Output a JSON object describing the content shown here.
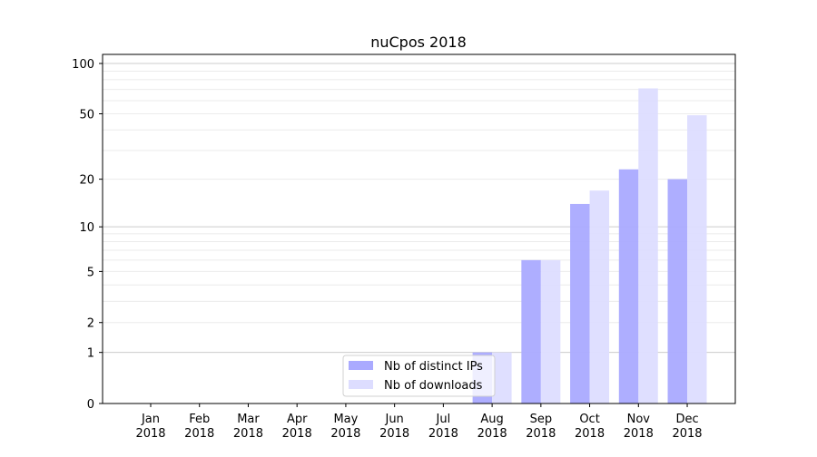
{
  "chart_data": {
    "type": "bar",
    "title": "nuCpos 2018",
    "xlabel": "",
    "ylabel": "",
    "yscale": "log(1+y)",
    "ylim": [
      0,
      110
    ],
    "yticks": [
      0,
      1,
      2,
      5,
      10,
      20,
      50,
      100
    ],
    "ytick_labels": [
      "0",
      "1",
      "2",
      "5",
      "10",
      "20",
      "50",
      "100"
    ],
    "grid": true,
    "legend_position": "lower-center",
    "categories": [
      [
        "Jan",
        "2018"
      ],
      [
        "Feb",
        "2018"
      ],
      [
        "Mar",
        "2018"
      ],
      [
        "Apr",
        "2018"
      ],
      [
        "May",
        "2018"
      ],
      [
        "Jun",
        "2018"
      ],
      [
        "Jul",
        "2018"
      ],
      [
        "Aug",
        "2018"
      ],
      [
        "Sep",
        "2018"
      ],
      [
        "Oct",
        "2018"
      ],
      [
        "Nov",
        "2018"
      ],
      [
        "Dec",
        "2018"
      ]
    ],
    "series": [
      {
        "name": "Nb of distinct IPs",
        "color": "#aaaaff",
        "values": [
          0,
          0,
          0,
          0,
          0,
          0,
          0,
          1,
          6,
          14,
          23,
          20
        ]
      },
      {
        "name": "Nb of downloads",
        "color": "#ddddff",
        "values": [
          0,
          0,
          0,
          0,
          0,
          0,
          0,
          1,
          6,
          17,
          71,
          49
        ]
      }
    ]
  }
}
